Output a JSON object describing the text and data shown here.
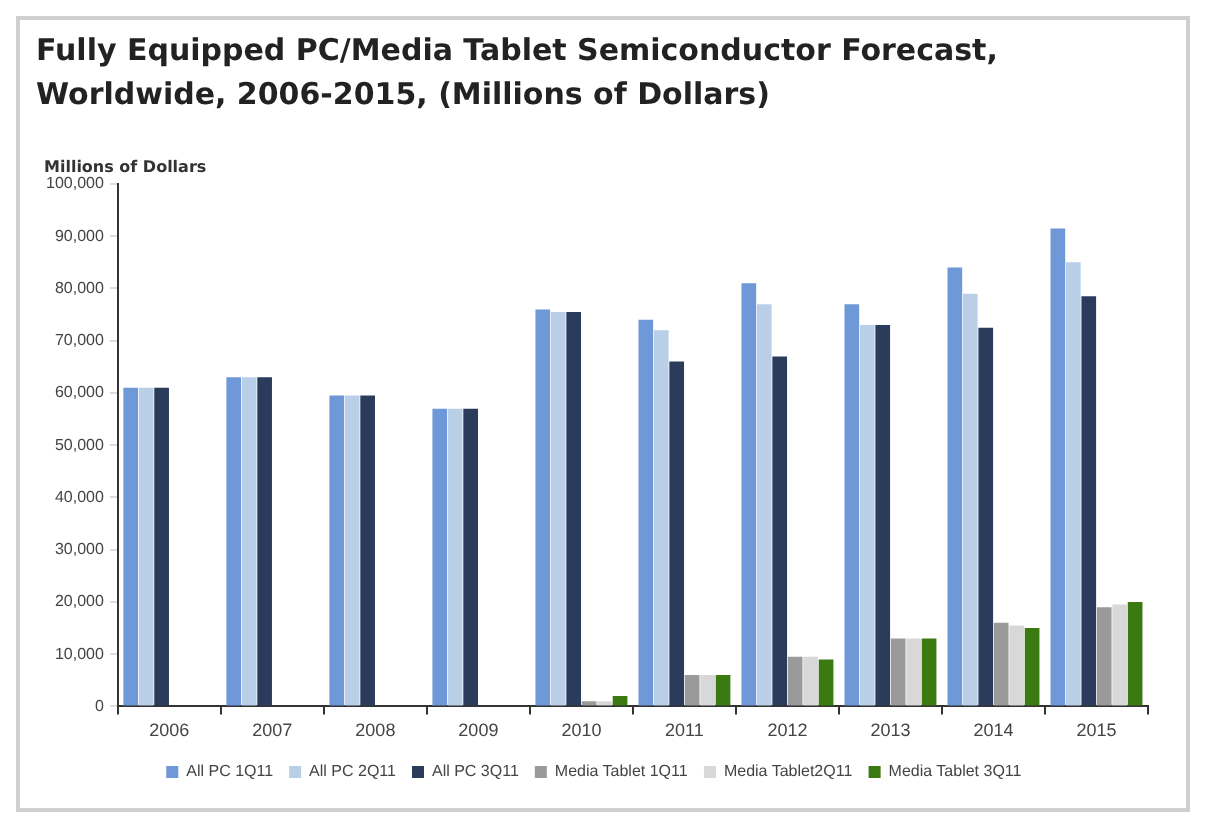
{
  "chart_data": {
    "type": "bar",
    "title": "Fully Equipped PC/Media Tablet Semiconductor Forecast, Worldwide, 2006-2015, (Millions of Dollars)",
    "ylabel": "Millions of Dollars",
    "categories": [
      "2006",
      "2007",
      "2008",
      "2009",
      "2010",
      "2011",
      "2012",
      "2013",
      "2014",
      "2015"
    ],
    "series": [
      {
        "name": "All PC 1Q11",
        "color": "#6f98d8",
        "values": [
          61000,
          63000,
          59500,
          57000,
          76000,
          74000,
          81000,
          77000,
          84000,
          91500
        ]
      },
      {
        "name": "All PC 2Q11",
        "color": "#b9cfe8",
        "values": [
          61000,
          63000,
          59500,
          57000,
          75500,
          72000,
          77000,
          73000,
          79000,
          85000
        ]
      },
      {
        "name": "All PC 3Q11",
        "color": "#2a3b5c",
        "values": [
          61000,
          63000,
          59500,
          57000,
          75500,
          66000,
          67000,
          73000,
          72500,
          78500
        ]
      },
      {
        "name": "Media Tablet 1Q11",
        "color": "#9a9a9a",
        "values": [
          null,
          null,
          null,
          null,
          1000,
          6000,
          9500,
          13000,
          16000,
          19000
        ]
      },
      {
        "name": "Media Tablet2Q11",
        "color": "#d8d8d8",
        "values": [
          null,
          null,
          null,
          null,
          1000,
          6000,
          9500,
          13000,
          15500,
          19500
        ]
      },
      {
        "name": "Media Tablet 3Q11",
        "color": "#3a7a10",
        "values": [
          null,
          null,
          null,
          null,
          2000,
          6000,
          9000,
          13000,
          15000,
          20000
        ]
      }
    ],
    "ylim": [
      0,
      100000
    ],
    "yticks": [
      0,
      {
        "value": 10000,
        "label": "10,000"
      },
      {
        "value": 20000,
        "label": "20,000"
      },
      {
        "value": 30000,
        "label": "30,000"
      },
      {
        "value": 40000,
        "label": "40,000"
      },
      {
        "value": 50000,
        "label": "50,000"
      },
      {
        "value": 60000,
        "label": "60,000"
      },
      {
        "value": 70000,
        "label": "70,000"
      },
      {
        "value": 80000,
        "label": "80,000"
      },
      {
        "value": 90000,
        "label": "90,000"
      },
      {
        "value": 100000,
        "label": "100,000"
      }
    ],
    "grid": false,
    "legend": "bottom"
  }
}
